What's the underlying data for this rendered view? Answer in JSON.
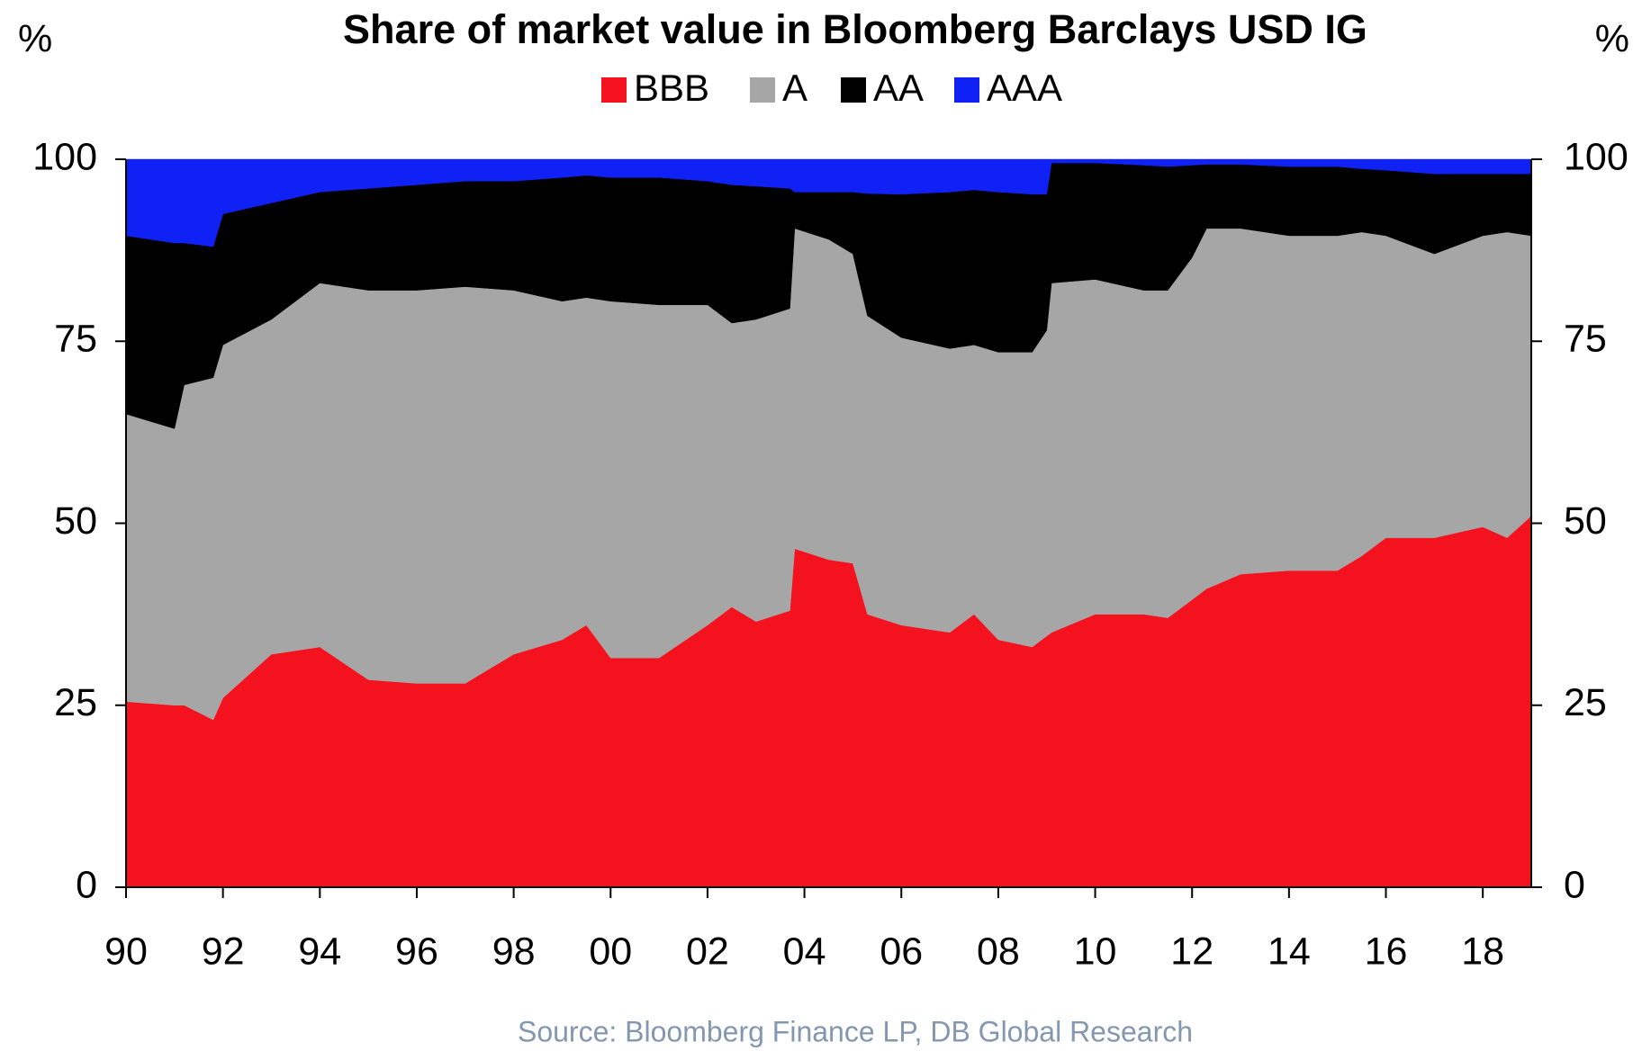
{
  "chart_data": {
    "type": "stacked_area",
    "title": "Share of market value in Bloomberg Barclays USD IG",
    "ylabel": "%",
    "y2label": "%",
    "source": "Source: Bloomberg Finance LP, DB Global Research",
    "x": [
      1990.0,
      1991.0,
      1991.2,
      1991.8,
      1992.0,
      1993.0,
      1994.0,
      1995.0,
      1996.0,
      1997.0,
      1998.0,
      1999.0,
      1999.5,
      2000.0,
      2001.0,
      2002.0,
      2002.5,
      2003.0,
      2003.7,
      2003.8,
      2004.5,
      2005.0,
      2005.3,
      2006.0,
      2007.0,
      2007.5,
      2008.0,
      2008.7,
      2009.0,
      2009.1,
      2010.0,
      2011.0,
      2011.5,
      2012.0,
      2012.3,
      2013.0,
      2014.0,
      2015.0,
      2015.5,
      2016.0,
      2017.0,
      2018.0,
      2018.5,
      2019.0
    ],
    "series": [
      {
        "name": "BBB",
        "color": "#f5121f",
        "values": [
          25.5,
          25,
          25,
          23,
          26,
          32,
          33,
          28.5,
          28,
          28,
          32,
          34,
          36,
          31.5,
          31.5,
          36,
          38.5,
          36.5,
          38,
          46.5,
          45,
          44.5,
          37.5,
          36,
          35,
          37.5,
          34,
          33,
          34.5,
          35,
          37.5,
          37.5,
          37,
          39.5,
          41,
          43,
          43.5,
          43.5,
          45.5,
          48,
          48,
          49.5,
          48,
          51
        ]
      },
      {
        "name": "A",
        "color": "#a6a6a6",
        "values": [
          39.5,
          38,
          44,
          47,
          48.5,
          46,
          50,
          53.5,
          54,
          54.5,
          50,
          46.5,
          45,
          49,
          48.5,
          44,
          39,
          41.5,
          41.5,
          44,
          44,
          42.5,
          41,
          39.5,
          39,
          37,
          39.5,
          40.5,
          42,
          48,
          46,
          44.5,
          45,
          47,
          49.5,
          47.5,
          46,
          46,
          44.5,
          41.5,
          39,
          40,
          42,
          38.5
        ]
      },
      {
        "name": "AA",
        "color": "#000000",
        "values": [
          24.5,
          25.5,
          19.5,
          18,
          18,
          16,
          12.5,
          14,
          14.5,
          14.5,
          15,
          17,
          16.8,
          17,
          17.5,
          17,
          19,
          18.3,
          16.5,
          5,
          6.5,
          8.5,
          16.8,
          19.7,
          21.5,
          21.3,
          22,
          21.7,
          18.7,
          16.5,
          16,
          17.2,
          17,
          12.7,
          8.8,
          8.8,
          9.5,
          9.5,
          8.7,
          9,
          11,
          8.5,
          8,
          8.5
        ]
      },
      {
        "name": "AAA",
        "color": "#1021f5",
        "values": [
          10.5,
          11.5,
          11.5,
          12,
          7.5,
          6,
          4.5,
          4,
          3.5,
          3,
          3,
          2.5,
          2.2,
          2.5,
          2.5,
          3,
          3.5,
          3.7,
          4,
          4.5,
          4.5,
          4.5,
          4.7,
          4.8,
          4.5,
          4.2,
          4.5,
          4.8,
          4.8,
          0.5,
          0.5,
          0.8,
          1,
          0.8,
          0.7,
          0.7,
          1,
          1,
          1.3,
          1.5,
          2,
          2,
          2,
          2
        ]
      }
    ],
    "xlim": [
      1990,
      2019
    ],
    "xticks": [
      {
        "value": 1990,
        "label": "90"
      },
      {
        "value": 1992,
        "label": "92"
      },
      {
        "value": 1994,
        "label": "94"
      },
      {
        "value": 1996,
        "label": "96"
      },
      {
        "value": 1998,
        "label": "98"
      },
      {
        "value": 2000,
        "label": "00"
      },
      {
        "value": 2002,
        "label": "02"
      },
      {
        "value": 2004,
        "label": "04"
      },
      {
        "value": 2006,
        "label": "06"
      },
      {
        "value": 2008,
        "label": "08"
      },
      {
        "value": 2010,
        "label": "10"
      },
      {
        "value": 2012,
        "label": "12"
      },
      {
        "value": 2014,
        "label": "14"
      },
      {
        "value": 2016,
        "label": "16"
      },
      {
        "value": 2018,
        "label": "18"
      }
    ],
    "ylim": [
      0,
      100
    ],
    "yticks": [
      0,
      25,
      50,
      75,
      100
    ],
    "y2lim": [
      0,
      100
    ],
    "y2ticks": [
      0,
      25,
      50,
      75,
      100
    ]
  }
}
